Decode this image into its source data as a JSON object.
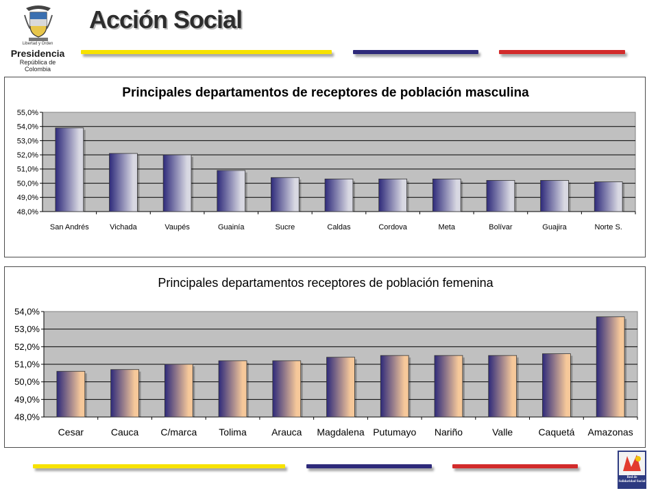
{
  "header": {
    "brand": "Acción Social",
    "presidencia": "Presidencia",
    "republica": "República de Colombia",
    "crest_motto": "Libertad y Orden"
  },
  "footer": {
    "logo_text": "Red de Solidaridad Social"
  },
  "colors": {
    "yellow": "#f7e200",
    "blue": "#2e2a7a",
    "red": "#d22b2b",
    "plot_bg": "#c0c0c0"
  },
  "chart_data": [
    {
      "type": "bar",
      "title": "Principales departamentos de receptores de población masculina",
      "categories": [
        "San Andrés",
        "Vichada",
        "Vaupés",
        "Guainía",
        "Sucre",
        "Caldas",
        "Cordova",
        "Meta",
        "Bolívar",
        "Guajira",
        "Norte S."
      ],
      "values": [
        53.9,
        52.1,
        52.0,
        50.9,
        50.4,
        50.3,
        50.3,
        50.3,
        50.2,
        50.2,
        50.1
      ],
      "ylim": [
        48.0,
        55.0
      ],
      "yticks": [
        "48,0%",
        "49,0%",
        "50,0%",
        "51,0%",
        "52,0%",
        "53,0%",
        "54,0%",
        "55,0%"
      ],
      "gradient_end": "#d8d8e2",
      "grid": true
    },
    {
      "type": "bar",
      "title": "Principales departamentos receptores de población femenina",
      "categories": [
        "Cesar",
        "Cauca",
        "C/marca",
        "Tolima",
        "Arauca",
        "Magdalena",
        "Putumayo",
        "Nariño",
        "Valle",
        "Caquetá",
        "Amazonas"
      ],
      "values": [
        50.6,
        50.7,
        51.0,
        51.2,
        51.2,
        51.4,
        51.5,
        51.5,
        51.5,
        51.6,
        53.7
      ],
      "ylim": [
        48.0,
        54.0
      ],
      "yticks": [
        "48,0%",
        "49,0%",
        "50,0%",
        "51,0%",
        "52,0%",
        "53,0%",
        "54,0%"
      ],
      "gradient_end": "#f6c89a",
      "grid": true
    }
  ]
}
